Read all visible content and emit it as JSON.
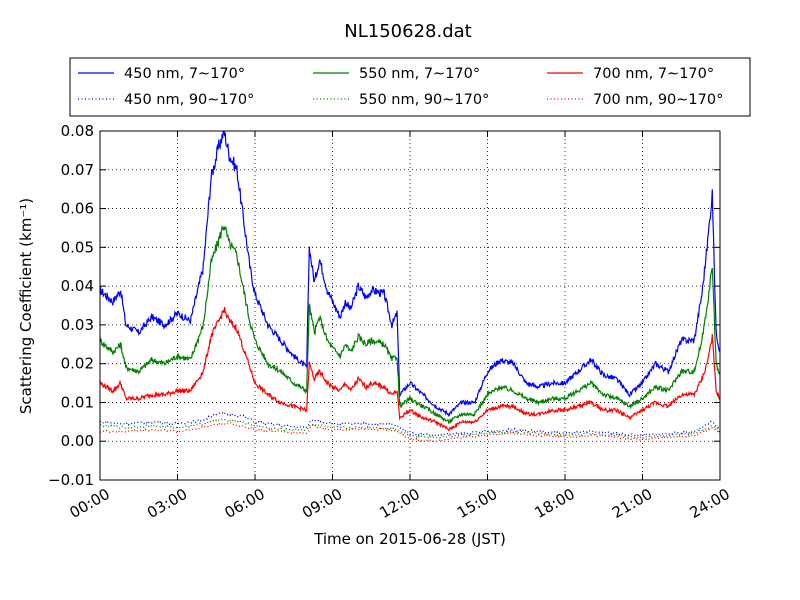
{
  "chart_data": {
    "type": "line",
    "title": "NL150628.dat",
    "xlabel": "Time on 2015-06-28 (JST)",
    "ylabel": "Scattering Coefficient (km⁻¹)",
    "x_unit": "hours",
    "xlim": [
      0,
      24
    ],
    "ylim": [
      -0.01,
      0.08
    ],
    "x_ticks": [
      0,
      3,
      6,
      9,
      12,
      15,
      18,
      21,
      24
    ],
    "x_tick_labels": [
      "00:00",
      "03:00",
      "06:00",
      "09:00",
      "12:00",
      "15:00",
      "18:00",
      "21:00",
      "24:00"
    ],
    "y_ticks": [
      -0.01,
      0.0,
      0.01,
      0.02,
      0.03,
      0.04,
      0.05,
      0.06,
      0.07,
      0.08
    ],
    "y_tick_labels": [
      "−0.01",
      "0.00",
      "0.01",
      "0.02",
      "0.03",
      "0.04",
      "0.05",
      "0.06",
      "0.07",
      "0.08"
    ],
    "grid": true,
    "legend_position": "top, above plot, 3 columns",
    "series": [
      {
        "name": "450 nm, 7∼170°",
        "color": "#0000ff",
        "style": "solid",
        "x": [
          0,
          0.5,
          0.8,
          1.0,
          1.5,
          2.0,
          2.5,
          3.0,
          3.5,
          4.0,
          4.3,
          4.6,
          4.8,
          5.0,
          5.3,
          5.5,
          5.8,
          6.0,
          6.5,
          7.0,
          7.5,
          8.0,
          8.1,
          8.3,
          8.5,
          8.8,
          9.0,
          9.3,
          9.5,
          9.7,
          10.0,
          10.3,
          10.5,
          11.0,
          11.3,
          11.5,
          11.6,
          12.0,
          12.5,
          13.0,
          13.5,
          14.0,
          14.5,
          15.0,
          15.5,
          16.0,
          16.5,
          17.0,
          17.5,
          18.0,
          18.5,
          19.0,
          19.5,
          20.0,
          20.5,
          21.0,
          21.5,
          22.0,
          22.5,
          23.0,
          23.3,
          23.5,
          23.7,
          23.85,
          24.0
        ],
        "y": [
          0.039,
          0.036,
          0.039,
          0.03,
          0.028,
          0.032,
          0.03,
          0.033,
          0.031,
          0.045,
          0.068,
          0.076,
          0.08,
          0.074,
          0.07,
          0.06,
          0.045,
          0.038,
          0.03,
          0.026,
          0.022,
          0.019,
          0.05,
          0.041,
          0.047,
          0.039,
          0.036,
          0.032,
          0.036,
          0.034,
          0.04,
          0.037,
          0.039,
          0.038,
          0.03,
          0.033,
          0.012,
          0.015,
          0.012,
          0.009,
          0.007,
          0.01,
          0.01,
          0.018,
          0.021,
          0.02,
          0.015,
          0.014,
          0.015,
          0.015,
          0.018,
          0.021,
          0.017,
          0.016,
          0.012,
          0.015,
          0.02,
          0.018,
          0.026,
          0.026,
          0.038,
          0.05,
          0.064,
          0.028,
          0.023
        ]
      },
      {
        "name": "550 nm, 7∼170°",
        "color": "#008000",
        "style": "solid",
        "x": [
          0,
          0.5,
          0.8,
          1.0,
          1.5,
          2.0,
          2.5,
          3.0,
          3.5,
          4.0,
          4.3,
          4.6,
          4.8,
          5.0,
          5.3,
          5.5,
          5.8,
          6.0,
          6.5,
          7.0,
          7.5,
          8.0,
          8.1,
          8.3,
          8.5,
          8.8,
          9.0,
          9.3,
          9.5,
          9.7,
          10.0,
          10.3,
          10.5,
          11.0,
          11.3,
          11.5,
          11.6,
          12.0,
          12.5,
          13.0,
          13.5,
          14.0,
          14.5,
          15.0,
          15.5,
          16.0,
          16.5,
          17.0,
          17.5,
          18.0,
          18.5,
          19.0,
          19.5,
          20.0,
          20.5,
          21.0,
          21.5,
          22.0,
          22.5,
          23.0,
          23.3,
          23.5,
          23.7,
          23.85,
          24.0
        ],
        "y": [
          0.026,
          0.023,
          0.025,
          0.019,
          0.018,
          0.021,
          0.02,
          0.022,
          0.021,
          0.03,
          0.046,
          0.052,
          0.056,
          0.051,
          0.048,
          0.041,
          0.031,
          0.026,
          0.02,
          0.018,
          0.015,
          0.013,
          0.035,
          0.028,
          0.032,
          0.026,
          0.024,
          0.022,
          0.025,
          0.023,
          0.027,
          0.025,
          0.026,
          0.025,
          0.021,
          0.022,
          0.009,
          0.011,
          0.009,
          0.007,
          0.005,
          0.007,
          0.007,
          0.012,
          0.014,
          0.013,
          0.011,
          0.01,
          0.011,
          0.011,
          0.013,
          0.015,
          0.012,
          0.011,
          0.009,
          0.011,
          0.014,
          0.013,
          0.018,
          0.018,
          0.026,
          0.035,
          0.045,
          0.02,
          0.017
        ]
      },
      {
        "name": "700 nm, 7∼170°",
        "color": "#ff0000",
        "style": "solid",
        "x": [
          0,
          0.5,
          0.8,
          1.0,
          1.5,
          2.0,
          2.5,
          3.0,
          3.5,
          4.0,
          4.3,
          4.6,
          4.8,
          5.0,
          5.3,
          5.5,
          5.8,
          6.0,
          6.5,
          7.0,
          7.5,
          8.0,
          8.1,
          8.3,
          8.5,
          8.8,
          9.0,
          9.3,
          9.5,
          9.7,
          10.0,
          10.3,
          10.5,
          11.0,
          11.3,
          11.5,
          11.6,
          12.0,
          12.5,
          13.0,
          13.5,
          14.0,
          14.5,
          15.0,
          15.5,
          16.0,
          16.5,
          17.0,
          17.5,
          18.0,
          18.5,
          19.0,
          19.5,
          20.0,
          20.5,
          21.0,
          21.5,
          22.0,
          22.5,
          23.0,
          23.3,
          23.5,
          23.7,
          23.85,
          24.0
        ],
        "y": [
          0.015,
          0.013,
          0.015,
          0.011,
          0.011,
          0.012,
          0.012,
          0.013,
          0.013,
          0.018,
          0.027,
          0.031,
          0.034,
          0.031,
          0.029,
          0.025,
          0.019,
          0.015,
          0.012,
          0.01,
          0.009,
          0.008,
          0.02,
          0.016,
          0.018,
          0.015,
          0.014,
          0.013,
          0.015,
          0.013,
          0.016,
          0.014,
          0.015,
          0.014,
          0.012,
          0.013,
          0.006,
          0.008,
          0.006,
          0.005,
          0.003,
          0.005,
          0.005,
          0.008,
          0.009,
          0.009,
          0.007,
          0.007,
          0.008,
          0.008,
          0.009,
          0.01,
          0.008,
          0.008,
          0.006,
          0.008,
          0.01,
          0.009,
          0.012,
          0.012,
          0.016,
          0.02,
          0.027,
          0.013,
          0.011
        ]
      },
      {
        "name": "450 nm, 90∼170°",
        "color": "#0000ff",
        "style": "dotted",
        "x": [
          0,
          1,
          2,
          3,
          4,
          4.5,
          5,
          5.5,
          6,
          7,
          8,
          8.2,
          9,
          10,
          11,
          11.5,
          12,
          13,
          14,
          15,
          16,
          17,
          18,
          19,
          20,
          21,
          22,
          23,
          23.7,
          24
        ],
        "y": [
          0.005,
          0.0045,
          0.005,
          0.0045,
          0.0055,
          0.007,
          0.007,
          0.0065,
          0.005,
          0.004,
          0.0035,
          0.0055,
          0.0045,
          0.0045,
          0.0045,
          0.004,
          0.002,
          0.0015,
          0.002,
          0.0025,
          0.003,
          0.0025,
          0.002,
          0.0025,
          0.002,
          0.0015,
          0.002,
          0.0025,
          0.005,
          0.003
        ]
      },
      {
        "name": "550 nm, 90∼170°",
        "color": "#008000",
        "style": "dotted",
        "x": [
          0,
          1,
          2,
          3,
          4,
          4.5,
          5,
          5.5,
          6,
          7,
          8,
          8.2,
          9,
          10,
          11,
          11.5,
          12,
          13,
          14,
          15,
          16,
          17,
          18,
          19,
          20,
          21,
          22,
          23,
          23.7,
          24
        ],
        "y": [
          0.004,
          0.0035,
          0.004,
          0.0035,
          0.0045,
          0.0055,
          0.0055,
          0.005,
          0.004,
          0.003,
          0.003,
          0.0045,
          0.0035,
          0.0035,
          0.0035,
          0.003,
          0.0015,
          0.001,
          0.0015,
          0.002,
          0.0025,
          0.002,
          0.0015,
          0.002,
          0.0015,
          0.001,
          0.0015,
          0.002,
          0.004,
          0.0025
        ]
      },
      {
        "name": "700 nm, 90∼170°",
        "color": "#ff0000",
        "style": "dotted",
        "x": [
          0,
          1,
          2,
          3,
          4,
          4.5,
          5,
          5.5,
          6,
          7,
          8,
          8.2,
          9,
          10,
          11,
          11.5,
          12,
          13,
          14,
          15,
          16,
          17,
          18,
          19,
          20,
          21,
          22,
          23,
          23.7,
          24
        ],
        "y": [
          0.0025,
          0.0025,
          0.003,
          0.0025,
          0.0035,
          0.0045,
          0.0045,
          0.004,
          0.003,
          0.0025,
          0.002,
          0.004,
          0.003,
          0.003,
          0.003,
          0.0025,
          0.0005,
          0.0,
          0.001,
          0.0015,
          0.002,
          0.0015,
          0.001,
          0.0015,
          0.001,
          0.0005,
          0.001,
          0.0015,
          0.0035,
          0.002
        ]
      }
    ]
  }
}
